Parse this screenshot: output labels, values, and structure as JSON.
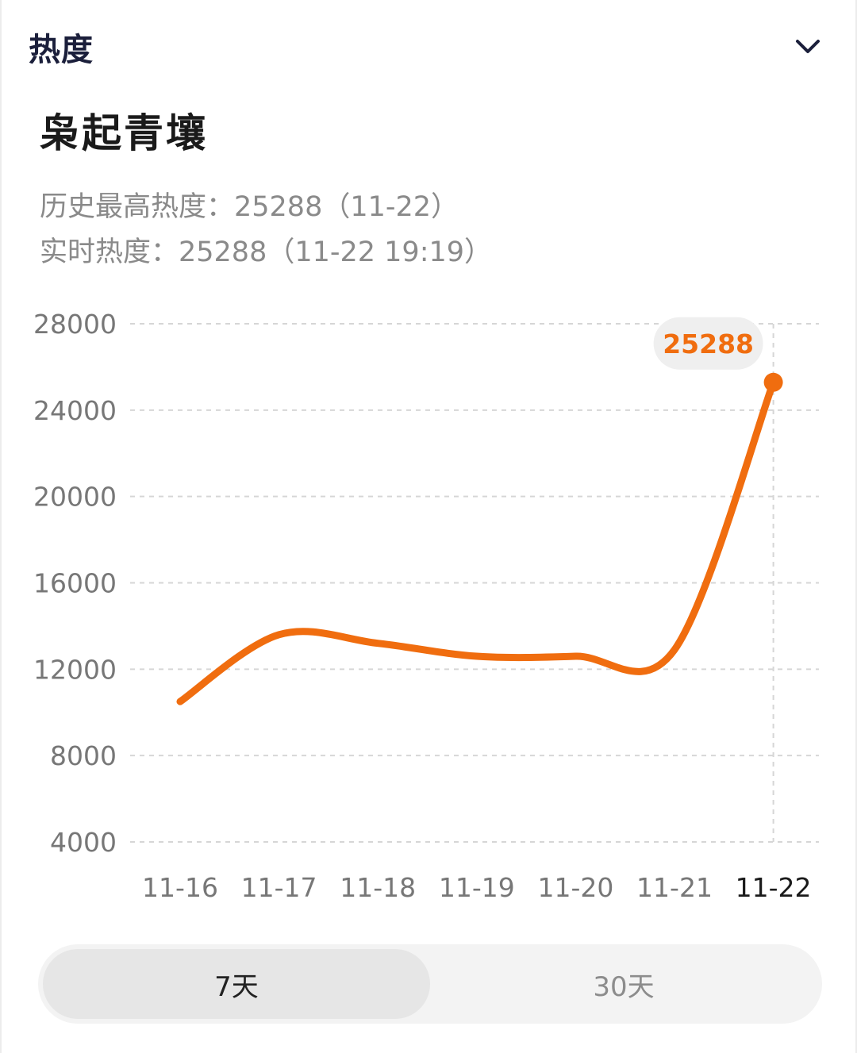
{
  "header": {
    "title": "热度"
  },
  "topic": {
    "name": "枭起青壤"
  },
  "stats": {
    "history_max": "历史最高热度：25288（11-22）",
    "realtime": "实时热度：25288（11-22 19:19）"
  },
  "tabs": [
    {
      "label": "7天",
      "selected": true
    },
    {
      "label": "30天",
      "selected": false
    }
  ],
  "colors": {
    "accent": "#f06d0f",
    "grid": "#d6d6d6",
    "axis_text": "#777777",
    "tooltip_bg": "#efefef"
  },
  "chart_data": {
    "type": "line",
    "categories": [
      "11-16",
      "11-17",
      "11-18",
      "11-19",
      "11-20",
      "11-21",
      "11-22"
    ],
    "series": [
      {
        "values": [
          10500,
          13600,
          13200,
          12600,
          12600,
          12900,
          25288
        ]
      }
    ],
    "ylim": [
      4000,
      28000
    ],
    "yticks": [
      4000,
      8000,
      12000,
      16000,
      20000,
      24000,
      28000
    ],
    "grid": true,
    "highlight": {
      "index": 6,
      "label": "25288"
    }
  }
}
